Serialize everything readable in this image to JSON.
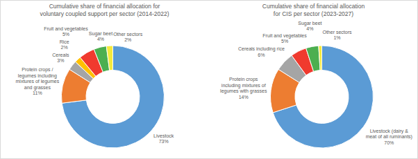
{
  "chart_data": [
    {
      "type": "donut",
      "title": "Cumulative share of financial allocation for voluntary coupled support per sector (2014-2022)",
      "categories": [
        "Livestock",
        "Protein crops / legumes including mixtures of legumes and grasses",
        "Cereals",
        "Rice",
        "Fruit and vegetables",
        "Sugar beet",
        "Other sectors"
      ],
      "values": [
        73,
        11,
        3,
        2,
        5,
        4,
        2
      ],
      "value_labels": [
        "73%",
        "11%",
        "3%",
        "2%",
        "5%",
        "4%",
        "2%"
      ],
      "colors": [
        "#5b9bd5",
        "#ed7d31",
        "#a5a5a5",
        "#ffc000",
        "#f03a2e",
        "#4caf50",
        "#f5ea3c"
      ],
      "data_labels": true
    },
    {
      "type": "donut",
      "title": "Cumulative share of financial allocation for CIS per sector (2023-2027)",
      "categories": [
        "Livestock (dairy & meat of all ruminants)",
        "Protein crops including mixtures of legumes with grasses",
        "Cereals including rice",
        "Fruit and vegetables",
        "Sugar beet",
        "Other sectors"
      ],
      "values": [
        70,
        14,
        6,
        5,
        4,
        1
      ],
      "value_labels": [
        "70%",
        "14%",
        "6%",
        "5%",
        "4%",
        "1%"
      ],
      "colors": [
        "#5b9bd5",
        "#ed7d31",
        "#a5a5a5",
        "#f03a2e",
        "#4caf50",
        "#f5ea3c"
      ],
      "data_labels": true
    }
  ]
}
